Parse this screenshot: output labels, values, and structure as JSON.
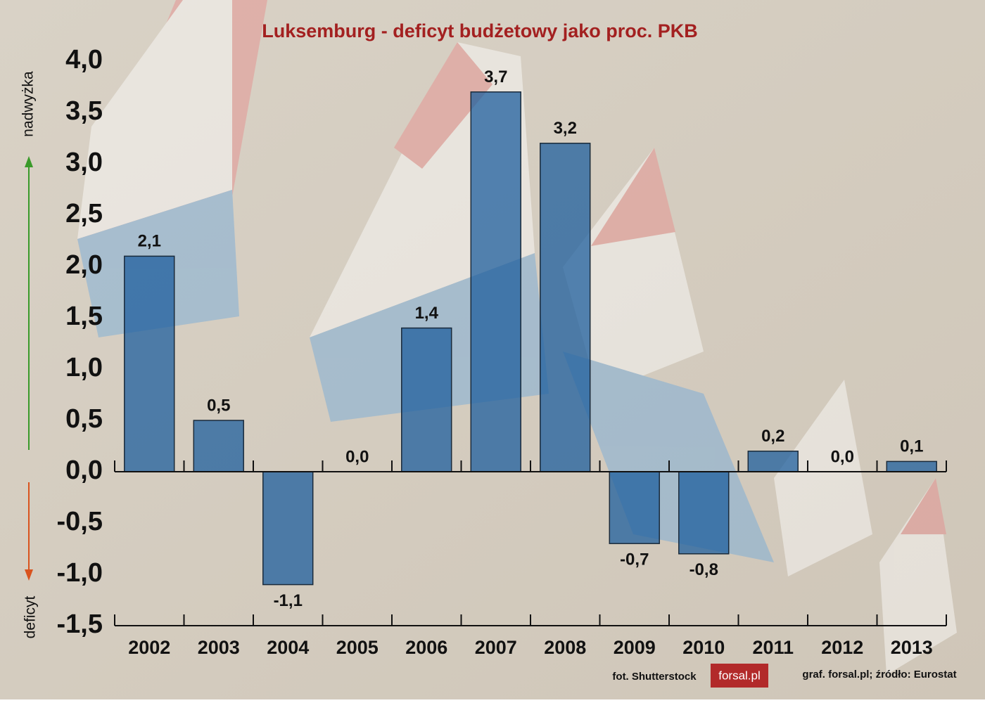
{
  "chart_data": {
    "type": "bar",
    "title": "Luksemburg - deficyt budżetowy jako proc. PKB",
    "categories": [
      "2002",
      "2003",
      "2004",
      "2005",
      "2006",
      "2007",
      "2008",
      "2009",
      "2010",
      "2011",
      "2012",
      "2013"
    ],
    "values": [
      2.1,
      0.5,
      -1.1,
      0.0,
      1.4,
      3.7,
      3.2,
      -0.7,
      -0.8,
      0.2,
      0.0,
      0.1
    ],
    "value_labels": [
      "2,1",
      "0,5",
      "-1,1",
      "0,0",
      "1,4",
      "3,7",
      "3,2",
      "-0,7",
      "-0,8",
      "0,2",
      "0,0",
      "0,1"
    ],
    "color": "#1f5f9e",
    "ylim": [
      -1.5,
      4.0
    ],
    "yticks": [
      {
        "value": -1.5,
        "label": "-1,5"
      },
      {
        "value": -1.0,
        "label": "-1,0"
      },
      {
        "value": -0.5,
        "label": "-0,5"
      },
      {
        "value": 0,
        "label": "0,0"
      },
      {
        "value": 0.5,
        "label": "0,5"
      },
      {
        "value": 1.0,
        "label": "1,0"
      },
      {
        "value": 1.5,
        "label": "1,5"
      },
      {
        "value": 2.0,
        "label": "2,0"
      },
      {
        "value": 2.5,
        "label": "2,5"
      },
      {
        "value": 3.0,
        "label": "3,0"
      },
      {
        "value": 3.5,
        "label": "3,5"
      },
      {
        "value": 4.0,
        "label": "4,0"
      }
    ],
    "up_label": "nadwyżka",
    "down_label": "deficyt",
    "photo_credit": "fot. Shutterstock",
    "logo": "forsal.pl",
    "source": "graf. forsal.pl;  źródło: Eurostat"
  }
}
